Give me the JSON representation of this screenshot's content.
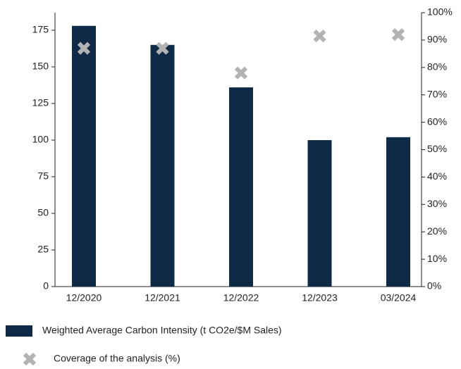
{
  "chart_data": {
    "type": "bar",
    "categories": [
      "12/2020",
      "12/2021",
      "12/2022",
      "12/2023",
      "03/2024"
    ],
    "series": [
      {
        "name": "Weighted Average Carbon Intensity (t CO2e/$M Sales)",
        "type": "bar",
        "color": "#0f2a47",
        "values": [
          178,
          165,
          136,
          100,
          102
        ]
      },
      {
        "name": "Coverage of the analysis (%)",
        "type": "scatter",
        "color": "#b3b3b3",
        "axis": "y2",
        "values": [
          87,
          87,
          78,
          91.5,
          92
        ]
      }
    ],
    "ylim": [
      0,
      187
    ],
    "yticks": [
      0,
      25,
      50,
      75,
      100,
      125,
      150,
      175
    ],
    "y2lim": [
      0,
      100
    ],
    "y2ticks": [
      {
        "value": 0,
        "label": "0%"
      },
      {
        "value": 10,
        "label": "10%"
      },
      {
        "value": 20,
        "label": "20%"
      },
      {
        "value": 30,
        "label": "30%"
      },
      {
        "value": 40,
        "label": "40%"
      },
      {
        "value": 50,
        "label": "50%"
      },
      {
        "value": 60,
        "label": "60%"
      },
      {
        "value": 70,
        "label": "70%"
      },
      {
        "value": 80,
        "label": "80%"
      },
      {
        "value": 90,
        "label": "90%"
      },
      {
        "value": 100,
        "label": "100%"
      }
    ],
    "grid": false,
    "legend": "bottom"
  }
}
